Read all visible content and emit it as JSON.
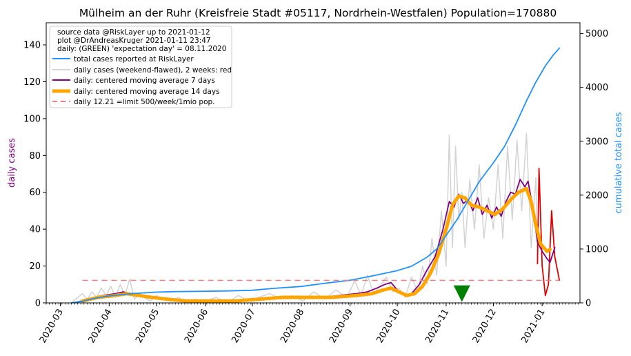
{
  "chart_data": {
    "type": "line",
    "title": "Mülheim an der Ruhr (Kreisfreie Stadt #05117, Nordrhein-Westfalen) Population=170880",
    "ylabel": "daily cases",
    "y2label": "cumulative total cases",
    "xlabel": "",
    "ylim": [
      0,
      152
    ],
    "y2lim": [
      0,
      5200
    ],
    "xlim": [
      "2020-02-21",
      "2021-01-25"
    ],
    "yticks": [
      0,
      20,
      40,
      60,
      80,
      100,
      120,
      140
    ],
    "y2ticks": [
      0,
      1000,
      2000,
      3000,
      4000,
      5000
    ],
    "xticks": [
      "2020-03",
      "2020-04",
      "2020-05",
      "2020-06",
      "2020-07",
      "2020-08",
      "2020-09",
      "2020-10",
      "2020-11",
      "2020-12",
      "2021-01"
    ],
    "grid": false,
    "legend_position": "top-left",
    "legend_text": [
      "source data @RiskLayer up to 2021-01-12",
      "plot @DrAndreasKruger 2021-01-11 23:47",
      "daily: (GREEN) 'expectation day' = 08.11.2020"
    ],
    "series": [
      {
        "name": "total cases reported at RiskLayer",
        "axis": "right",
        "color": "#1e90ff",
        "points": [
          [
            "2020-03-08",
            0
          ],
          [
            "2020-03-15",
            30
          ],
          [
            "2020-03-22",
            80
          ],
          [
            "2020-04-01",
            130
          ],
          [
            "2020-04-15",
            170
          ],
          [
            "2020-05-01",
            200
          ],
          [
            "2020-05-15",
            210
          ],
          [
            "2020-06-01",
            215
          ],
          [
            "2020-06-15",
            222
          ],
          [
            "2020-07-01",
            235
          ],
          [
            "2020-07-15",
            270
          ],
          [
            "2020-08-01",
            305
          ],
          [
            "2020-08-15",
            360
          ],
          [
            "2020-09-01",
            420
          ],
          [
            "2020-09-15",
            500
          ],
          [
            "2020-10-01",
            600
          ],
          [
            "2020-10-10",
            680
          ],
          [
            "2020-10-20",
            850
          ],
          [
            "2020-10-26",
            1000
          ],
          [
            "2020-11-01",
            1250
          ],
          [
            "2020-11-08",
            1550
          ],
          [
            "2020-11-15",
            1900
          ],
          [
            "2020-11-22",
            2250
          ],
          [
            "2020-12-01",
            2600
          ],
          [
            "2020-12-08",
            2900
          ],
          [
            "2020-12-15",
            3300
          ],
          [
            "2020-12-22",
            3750
          ],
          [
            "2020-12-28",
            4100
          ],
          [
            "2021-01-03",
            4400
          ],
          [
            "2021-01-08",
            4600
          ],
          [
            "2021-01-12",
            4730
          ]
        ]
      },
      {
        "name": "daily cases (weekend-flawed), 2 weeks: red",
        "axis": "left",
        "color": "#d3d3d3",
        "recent_color": "#e00000",
        "recent_from": "2020-12-29",
        "points": [
          [
            "2020-03-08",
            0
          ],
          [
            "2020-03-12",
            3
          ],
          [
            "2020-03-15",
            5
          ],
          [
            "2020-03-18",
            2
          ],
          [
            "2020-03-21",
            6
          ],
          [
            "2020-03-24",
            3
          ],
          [
            "2020-03-27",
            8
          ],
          [
            "2020-03-30",
            4
          ],
          [
            "2020-04-02",
            9
          ],
          [
            "2020-04-05",
            3
          ],
          [
            "2020-04-08",
            10
          ],
          [
            "2020-04-11",
            4
          ],
          [
            "2020-04-14",
            13
          ],
          [
            "2020-04-17",
            2
          ],
          [
            "2020-04-20",
            5
          ],
          [
            "2020-04-23",
            3
          ],
          [
            "2020-04-27",
            1
          ],
          [
            "2020-05-01",
            4
          ],
          [
            "2020-05-05",
            2
          ],
          [
            "2020-05-10",
            1
          ],
          [
            "2020-05-15",
            3
          ],
          [
            "2020-05-20",
            0
          ],
          [
            "2020-05-25",
            2
          ],
          [
            "2020-06-01",
            1
          ],
          [
            "2020-06-08",
            3
          ],
          [
            "2020-06-15",
            0
          ],
          [
            "2020-06-22",
            4
          ],
          [
            "2020-06-29",
            1
          ],
          [
            "2020-07-05",
            3
          ],
          [
            "2020-07-12",
            5
          ],
          [
            "2020-07-19",
            2
          ],
          [
            "2020-07-26",
            4
          ],
          [
            "2020-08-02",
            1
          ],
          [
            "2020-08-09",
            6
          ],
          [
            "2020-08-16",
            2
          ],
          [
            "2020-08-23",
            7
          ],
          [
            "2020-08-30",
            3
          ],
          [
            "2020-09-04",
            12
          ],
          [
            "2020-09-08",
            4
          ],
          [
            "2020-09-12",
            15
          ],
          [
            "2020-09-16",
            5
          ],
          [
            "2020-09-20",
            9
          ],
          [
            "2020-09-24",
            14
          ],
          [
            "2020-09-28",
            6
          ],
          [
            "2020-10-02",
            8
          ],
          [
            "2020-10-06",
            3
          ],
          [
            "2020-10-10",
            14
          ],
          [
            "2020-10-14",
            6
          ],
          [
            "2020-10-17",
            20
          ],
          [
            "2020-10-20",
            10
          ],
          [
            "2020-10-23",
            35
          ],
          [
            "2020-10-26",
            15
          ],
          [
            "2020-10-29",
            50
          ],
          [
            "2020-11-01",
            20
          ],
          [
            "2020-11-03",
            91
          ],
          [
            "2020-11-05",
            30
          ],
          [
            "2020-11-07",
            85
          ],
          [
            "2020-11-09",
            45
          ],
          [
            "2020-11-11",
            60
          ],
          [
            "2020-11-13",
            30
          ],
          [
            "2020-11-16",
            67
          ],
          [
            "2020-11-19",
            40
          ],
          [
            "2020-11-22",
            75
          ],
          [
            "2020-11-25",
            35
          ],
          [
            "2020-11-28",
            57
          ],
          [
            "2020-12-01",
            40
          ],
          [
            "2020-12-04",
            75
          ],
          [
            "2020-12-07",
            35
          ],
          [
            "2020-12-10",
            85
          ],
          [
            "2020-12-13",
            45
          ],
          [
            "2020-12-16",
            88
          ],
          [
            "2020-12-19",
            50
          ],
          [
            "2020-12-22",
            92
          ],
          [
            "2020-12-25",
            30
          ],
          [
            "2020-12-28",
            68
          ],
          [
            "2020-12-29",
            21
          ],
          [
            "2020-12-30",
            73
          ],
          [
            "2021-01-01",
            20
          ],
          [
            "2021-01-03",
            4
          ],
          [
            "2021-01-05",
            10
          ],
          [
            "2021-01-07",
            50
          ],
          [
            "2021-01-09",
            25
          ],
          [
            "2021-01-12",
            12
          ]
        ]
      },
      {
        "name": "daily: centered moving average 7 days",
        "axis": "left",
        "color": "#800080",
        "points": [
          [
            "2020-03-10",
            0
          ],
          [
            "2020-03-18",
            2
          ],
          [
            "2020-03-28",
            4
          ],
          [
            "2020-04-05",
            5
          ],
          [
            "2020-04-10",
            6
          ],
          [
            "2020-04-18",
            4
          ],
          [
            "2020-04-26",
            3
          ],
          [
            "2020-05-05",
            2
          ],
          [
            "2020-05-15",
            1
          ],
          [
            "2020-05-25",
            1
          ],
          [
            "2020-06-05",
            1
          ],
          [
            "2020-06-15",
            1
          ],
          [
            "2020-06-25",
            1
          ],
          [
            "2020-07-05",
            2
          ],
          [
            "2020-07-15",
            3
          ],
          [
            "2020-07-25",
            3
          ],
          [
            "2020-08-05",
            3
          ],
          [
            "2020-08-15",
            3
          ],
          [
            "2020-08-25",
            4
          ],
          [
            "2020-09-05",
            5
          ],
          [
            "2020-09-12",
            6
          ],
          [
            "2020-09-18",
            8
          ],
          [
            "2020-09-23",
            10
          ],
          [
            "2020-09-27",
            11
          ],
          [
            "2020-10-02",
            6
          ],
          [
            "2020-10-06",
            4
          ],
          [
            "2020-10-10",
            5
          ],
          [
            "2020-10-15",
            10
          ],
          [
            "2020-10-20",
            18
          ],
          [
            "2020-10-25",
            25
          ],
          [
            "2020-10-30",
            40
          ],
          [
            "2020-11-03",
            55
          ],
          [
            "2020-11-06",
            52
          ],
          [
            "2020-11-09",
            59
          ],
          [
            "2020-11-12",
            54
          ],
          [
            "2020-11-15",
            56
          ],
          [
            "2020-11-18",
            50
          ],
          [
            "2020-11-21",
            57
          ],
          [
            "2020-11-24",
            48
          ],
          [
            "2020-11-27",
            53
          ],
          [
            "2020-11-30",
            46
          ],
          [
            "2020-12-03",
            52
          ],
          [
            "2020-12-06",
            47
          ],
          [
            "2020-12-09",
            55
          ],
          [
            "2020-12-12",
            60
          ],
          [
            "2020-12-15",
            59
          ],
          [
            "2020-12-18",
            67
          ],
          [
            "2020-12-21",
            63
          ],
          [
            "2020-12-23",
            66
          ],
          [
            "2020-12-26",
            52
          ],
          [
            "2020-12-29",
            33
          ],
          [
            "2021-01-01",
            28
          ],
          [
            "2021-01-04",
            24
          ],
          [
            "2021-01-06",
            22
          ],
          [
            "2021-01-09",
            30
          ]
        ]
      },
      {
        "name": "daily: centered moving average 14 days",
        "axis": "left",
        "color": "#ffa500",
        "points": [
          [
            "2020-03-15",
            1
          ],
          [
            "2020-03-25",
            3
          ],
          [
            "2020-04-05",
            4
          ],
          [
            "2020-04-12",
            5
          ],
          [
            "2020-04-20",
            4
          ],
          [
            "2020-04-28",
            3
          ],
          [
            "2020-05-08",
            2
          ],
          [
            "2020-05-20",
            1
          ],
          [
            "2020-06-05",
            1
          ],
          [
            "2020-06-20",
            1
          ],
          [
            "2020-07-05",
            2
          ],
          [
            "2020-07-20",
            3
          ],
          [
            "2020-08-05",
            3
          ],
          [
            "2020-08-20",
            3
          ],
          [
            "2020-09-05",
            4
          ],
          [
            "2020-09-15",
            5
          ],
          [
            "2020-09-22",
            7
          ],
          [
            "2020-09-27",
            8
          ],
          [
            "2020-10-02",
            6
          ],
          [
            "2020-10-07",
            4
          ],
          [
            "2020-10-12",
            5
          ],
          [
            "2020-10-17",
            9
          ],
          [
            "2020-10-22",
            16
          ],
          [
            "2020-10-27",
            26
          ],
          [
            "2020-11-01",
            40
          ],
          [
            "2020-11-05",
            53
          ],
          [
            "2020-11-09",
            58
          ],
          [
            "2020-11-13",
            57
          ],
          [
            "2020-11-17",
            53
          ],
          [
            "2020-11-22",
            52
          ],
          [
            "2020-11-27",
            50
          ],
          [
            "2020-12-02",
            48
          ],
          [
            "2020-12-07",
            51
          ],
          [
            "2020-12-12",
            56
          ],
          [
            "2020-12-17",
            60
          ],
          [
            "2020-12-22",
            62
          ],
          [
            "2020-12-25",
            55
          ],
          [
            "2020-12-28",
            42
          ],
          [
            "2020-12-31",
            32
          ],
          [
            "2021-01-04",
            28
          ],
          [
            "2021-01-06",
            29
          ]
        ]
      },
      {
        "name": "daily 12.21 =limit 500/week/1mio pop.",
        "axis": "left",
        "color": "#f08080",
        "dashed": true,
        "points": [
          [
            "2020-03-15",
            12.21
          ],
          [
            "2021-01-12",
            12.21
          ]
        ]
      }
    ],
    "marker": {
      "date": "2020-11-11",
      "value": 5,
      "color": "#008000",
      "shape": "triangle-down"
    }
  }
}
